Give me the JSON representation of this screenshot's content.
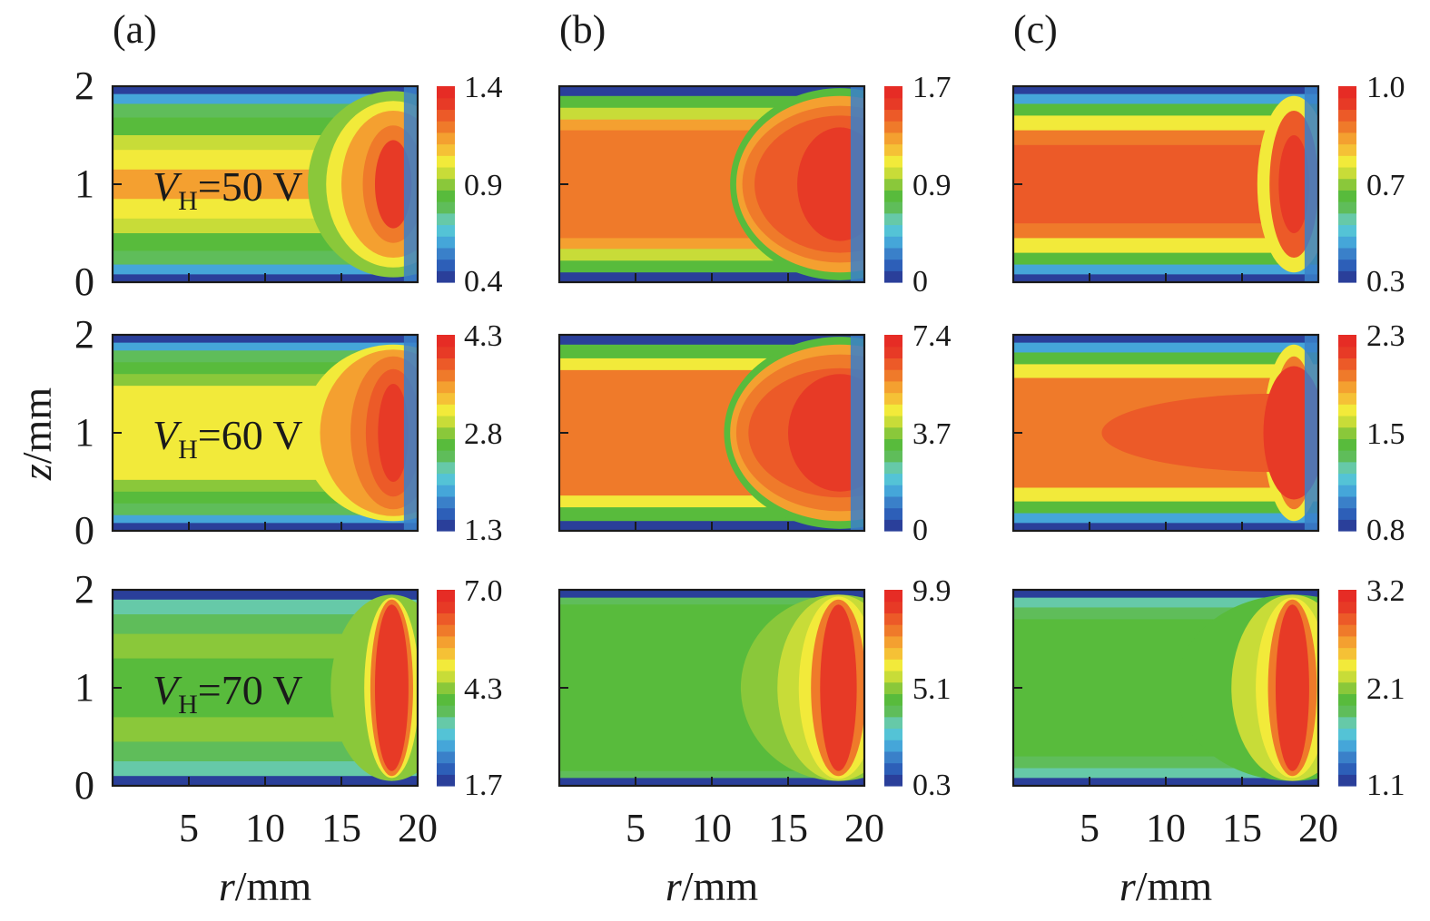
{
  "chart_data": {
    "type": "heatmap",
    "xlabel_var": "r",
    "xlabel_unit": "/mm",
    "ylabel_var": "z",
    "ylabel_unit": "/mm",
    "xlim": [
      0,
      20
    ],
    "ylim": [
      0,
      2
    ],
    "x_ticks": [
      "5",
      "10",
      "15",
      "20"
    ],
    "y_ticks": [
      "0",
      "1",
      "2"
    ],
    "column_labels": [
      "(a)",
      "(b)",
      "(c)"
    ],
    "rows": [
      {
        "annotation_var": "V",
        "annotation_sub": "H",
        "annotation_value": "=50 V",
        "colorbars": [
          [
            "1.4",
            "0.9",
            "0.4"
          ],
          [
            "1.7",
            "0.9",
            "0"
          ],
          [
            "1.0",
            "0.7",
            "0.3"
          ]
        ]
      },
      {
        "annotation_var": "V",
        "annotation_sub": "H",
        "annotation_value": "=60 V",
        "colorbars": [
          [
            "4.3",
            "2.8",
            "1.3"
          ],
          [
            "7.4",
            "3.7",
            "0"
          ],
          [
            "2.3",
            "1.5",
            "0.8"
          ]
        ]
      },
      {
        "annotation_var": "V",
        "annotation_sub": "H",
        "annotation_value": "=70 V",
        "colorbars": [
          [
            "7.0",
            "4.3",
            "1.7"
          ],
          [
            "9.9",
            "5.1",
            "0.3"
          ],
          [
            "3.2",
            "2.1",
            "1.1"
          ]
        ]
      }
    ],
    "colormap": [
      "#2a3f9a",
      "#2d5fb8",
      "#3a80c9",
      "#45a6d9",
      "#54c3d6",
      "#66c9a8",
      "#5fbd5a",
      "#58bb3c",
      "#8ac83a",
      "#c8dc38",
      "#f2ea3a",
      "#f5c136",
      "#f4a030",
      "#ef7a2a",
      "#ec5a28",
      "#e73a26",
      "#e62c25"
    ]
  }
}
